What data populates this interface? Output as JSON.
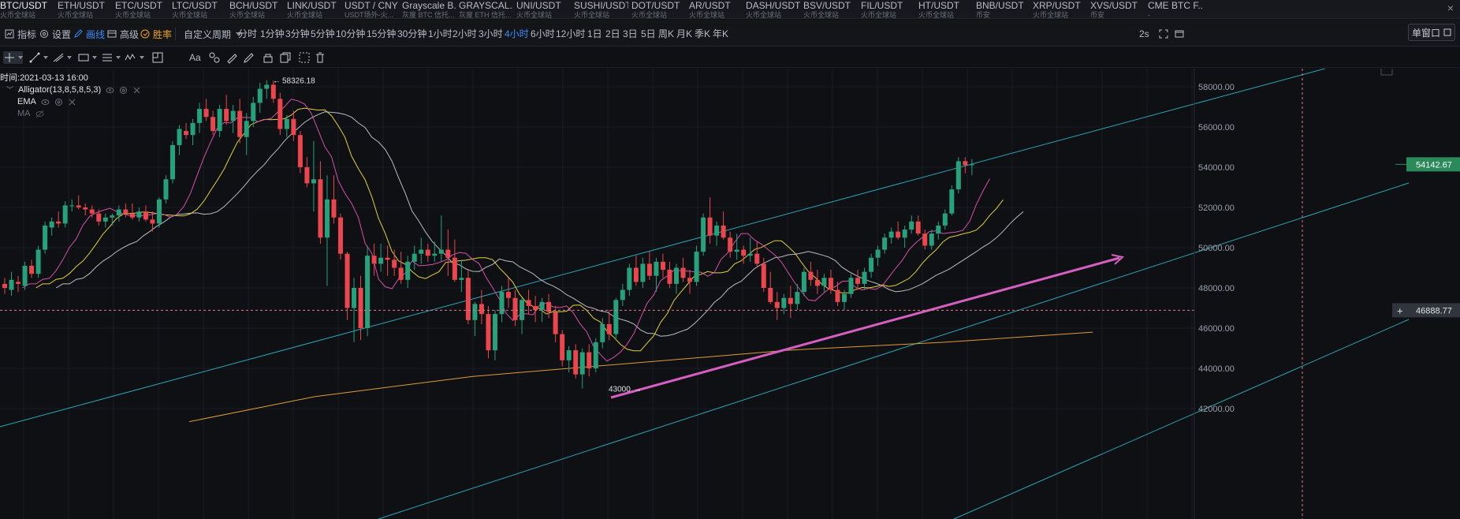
{
  "tickers": [
    {
      "symbol": "BTC/USDT",
      "exchange": "火币全球站",
      "active": true
    },
    {
      "symbol": "ETH/USDT",
      "exchange": "火币全球站"
    },
    {
      "symbol": "ETC/USDT",
      "exchange": "火币全球站"
    },
    {
      "symbol": "LTC/USDT",
      "exchange": "火币全球站"
    },
    {
      "symbol": "BCH/USDT",
      "exchange": "火币全球站"
    },
    {
      "symbol": "LINK/USDT",
      "exchange": "火币全球站"
    },
    {
      "symbol": "USDT / CNY",
      "exchange": "USDT场外-火..."
    },
    {
      "symbol": "Grayscale B...",
      "exchange": "灰度 BTC 信托..."
    },
    {
      "symbol": "GRAYSCAL...",
      "exchange": "灰度 ETH 信托..."
    },
    {
      "symbol": "UNI/USDT",
      "exchange": "火币全球站"
    },
    {
      "symbol": "SUSHI/USDT",
      "exchange": "火币全球站"
    },
    {
      "symbol": "DOT/USDT",
      "exchange": "火币全球站"
    },
    {
      "symbol": "AR/USDT",
      "exchange": "火币全球站"
    },
    {
      "symbol": "DASH/USDT",
      "exchange": "火币全球站"
    },
    {
      "symbol": "BSV/USDT",
      "exchange": "火币全球站"
    },
    {
      "symbol": "FIL/USDT",
      "exchange": "火币全球站"
    },
    {
      "symbol": "HT/USDT",
      "exchange": "火币全球站"
    },
    {
      "symbol": "BNB/USDT",
      "exchange": "币安"
    },
    {
      "symbol": "XRP/USDT",
      "exchange": "火币全球站"
    },
    {
      "symbol": "XVS/USDT",
      "exchange": "币安"
    },
    {
      "symbol": "CME BTC F...",
      "exchange": "-"
    }
  ],
  "ticker_close": "×",
  "toolbar": {
    "indicators": "指标",
    "settings": "设置",
    "drawing": "画线",
    "advanced": "高级",
    "winrate": "胜率",
    "custom_period": "自定义周期",
    "periods": [
      "分时",
      "1分钟",
      "3分钟",
      "5分钟",
      "10分钟",
      "15分钟",
      "30分钟",
      "1小时",
      "2小时",
      "3小时",
      "4小时",
      "6小时",
      "12小时",
      "1日",
      "2日",
      "3日",
      "5日",
      "周K",
      "月K",
      "季K",
      "年K"
    ],
    "active_period": "4小时",
    "refresh_interval": "2s",
    "single_window": "单窗口"
  },
  "drawing_tools": [
    "crosshair",
    "trend-line",
    "fib",
    "rectangle",
    "horizontal-lines",
    "wave",
    "ruler",
    "text",
    "pattern",
    "brush",
    "pencil",
    "lock",
    "copy",
    "screenshot",
    "delete"
  ],
  "drawing_text_tool": "Aa",
  "legend": {
    "time_label": "时间:",
    "time_value": "2021-03-13 16:00",
    "indicators": [
      {
        "name": "Alligator(13,8,5,8,5,3)",
        "visible": true
      },
      {
        "name": "EMA",
        "visible": true
      },
      {
        "name": "MA",
        "visible": false
      }
    ]
  },
  "colors": {
    "up": "#26a17b",
    "down": "#e9474d",
    "alligator_jaw": "#d450a8",
    "alligator_teeth": "#dfd040",
    "alligator_lips": "#b9bcc4",
    "ema": "#e09a3a",
    "channel": "#2aa6b6",
    "trendline": "#d45fc0",
    "price_tag": "#2a8a5a",
    "crosshair": "#e07a8a"
  },
  "chart_data": {
    "type": "candlestick",
    "interval": "4小时",
    "y_axis_labels": [
      "58000.00",
      "56000.00",
      "54000.00",
      "52000.00",
      "50000.00",
      "48000.00",
      "46000.00",
      "44000.00",
      "42000.00"
    ],
    "ylim": [
      41500,
      59300
    ],
    "last_price": "54142.67",
    "crosshair_price": "46888.77",
    "annotations": {
      "high": "58326.18",
      "low": "43000"
    },
    "candles_ohlc": [
      [
        48200,
        48500,
        47700,
        48000
      ],
      [
        47900,
        48800,
        47600,
        48400
      ],
      [
        48300,
        48600,
        47800,
        48200
      ],
      [
        48100,
        49300,
        47900,
        49100
      ],
      [
        49100,
        49400,
        48500,
        48700
      ],
      [
        48700,
        50100,
        48500,
        49900
      ],
      [
        49900,
        51300,
        49700,
        51100
      ],
      [
        51000,
        51500,
        50600,
        51300
      ],
      [
        51300,
        51800,
        51000,
        51200
      ],
      [
        51200,
        52300,
        51000,
        52100
      ],
      [
        52100,
        52400,
        51800,
        52100
      ],
      [
        52100,
        52600,
        51900,
        52000
      ],
      [
        52000,
        52200,
        51600,
        51900
      ],
      [
        51900,
        52100,
        51500,
        51700
      ],
      [
        51700,
        51900,
        51100,
        51300
      ],
      [
        51300,
        51700,
        51000,
        51500
      ],
      [
        51500,
        51700,
        51100,
        51600
      ],
      [
        51600,
        52100,
        51300,
        51900
      ],
      [
        51900,
        52200,
        51500,
        51700
      ],
      [
        51700,
        52200,
        51400,
        51500
      ],
      [
        51500,
        52000,
        51300,
        51800
      ],
      [
        51800,
        52100,
        51300,
        51400
      ],
      [
        51400,
        51800,
        50800,
        51200
      ],
      [
        51200,
        52500,
        51000,
        52400
      ],
      [
        52400,
        53600,
        52200,
        53400
      ],
      [
        53400,
        55300,
        53200,
        55100
      ],
      [
        55100,
        56100,
        54600,
        55900
      ],
      [
        55800,
        56200,
        55400,
        55600
      ],
      [
        55600,
        56400,
        55100,
        56200
      ],
      [
        56200,
        57200,
        55700,
        56900
      ],
      [
        56900,
        57400,
        56300,
        56500
      ],
      [
        56500,
        56800,
        55600,
        55800
      ],
      [
        55800,
        57100,
        55500,
        56900
      ],
      [
        56900,
        57600,
        56100,
        56300
      ],
      [
        56300,
        57100,
        55700,
        56800
      ],
      [
        56800,
        57400,
        55200,
        55500
      ],
      [
        55500,
        56700,
        54600,
        56300
      ],
      [
        56300,
        57500,
        56000,
        57200
      ],
      [
        57200,
        58200,
        56700,
        57900
      ],
      [
        57900,
        58326,
        57400,
        58100
      ],
      [
        58100,
        58300,
        57200,
        57400
      ],
      [
        57400,
        57700,
        55600,
        55900
      ],
      [
        55900,
        56600,
        55500,
        56400
      ],
      [
        56400,
        56800,
        55300,
        55600
      ],
      [
        55600,
        55800,
        53700,
        54000
      ],
      [
        54000,
        54500,
        53000,
        53200
      ],
      [
        53200,
        55300,
        51800,
        53400
      ],
      [
        53400,
        54300,
        50200,
        50500
      ],
      [
        50500,
        53600,
        48100,
        52400
      ],
      [
        52400,
        53600,
        51200,
        51500
      ],
      [
        51500,
        51700,
        49400,
        49700
      ],
      [
        49700,
        49800,
        46400,
        47000
      ],
      [
        47000,
        48500,
        45300,
        48000
      ],
      [
        48000,
        48600,
        45400,
        46000
      ],
      [
        46000,
        50100,
        45600,
        49600
      ],
      [
        49600,
        50200,
        48600,
        49200
      ],
      [
        49200,
        50200,
        48800,
        49500
      ],
      [
        49500,
        50100,
        48600,
        49400
      ],
      [
        49400,
        49900,
        48600,
        49000
      ],
      [
        49000,
        49800,
        48200,
        48400
      ],
      [
        48400,
        49600,
        48000,
        49300
      ],
      [
        49300,
        50100,
        48900,
        49700
      ],
      [
        49700,
        50500,
        49200,
        49900
      ],
      [
        49900,
        50200,
        49300,
        49600
      ],
      [
        49600,
        50300,
        49300,
        49700
      ],
      [
        49700,
        51600,
        49300,
        49900
      ],
      [
        49900,
        50900,
        48600,
        49500
      ],
      [
        49500,
        50400,
        48300,
        48400
      ],
      [
        48400,
        49400,
        47800,
        48500
      ],
      [
        48500,
        48900,
        46200,
        46400
      ],
      [
        46400,
        47300,
        45600,
        47200
      ],
      [
        47200,
        47900,
        46200,
        46700
      ],
      [
        46700,
        47100,
        44500,
        44900
      ],
      [
        44900,
        46900,
        44400,
        46700
      ],
      [
        46700,
        48100,
        46300,
        47800
      ],
      [
        47800,
        48500,
        47000,
        47500
      ],
      [
        47500,
        47900,
        46100,
        46400
      ],
      [
        46400,
        47500,
        45700,
        47400
      ],
      [
        47400,
        47900,
        46700,
        47100
      ],
      [
        47100,
        47600,
        46300,
        46900
      ],
      [
        46900,
        47500,
        46300,
        47300
      ],
      [
        47300,
        47700,
        46500,
        46800
      ],
      [
        46800,
        47100,
        45300,
        45700
      ],
      [
        45700,
        45900,
        44100,
        44400
      ],
      [
        44400,
        45100,
        43800,
        44900
      ],
      [
        44900,
        45200,
        43500,
        43700
      ],
      [
        43700,
        45000,
        43000,
        44800
      ],
      [
        44800,
        45200,
        43600,
        44000
      ],
      [
        44000,
        45500,
        43800,
        45300
      ],
      [
        45300,
        46500,
        45000,
        46200
      ],
      [
        46200,
        46900,
        45400,
        45700
      ],
      [
        45700,
        47500,
        45500,
        47400
      ],
      [
        47400,
        48200,
        47100,
        47900
      ],
      [
        47900,
        49200,
        47600,
        49000
      ],
      [
        49000,
        49600,
        48100,
        48300
      ],
      [
        48300,
        49500,
        48000,
        49200
      ],
      [
        49200,
        49800,
        48400,
        48600
      ],
      [
        48600,
        49500,
        47800,
        49300
      ],
      [
        49300,
        49700,
        48500,
        48900
      ],
      [
        48900,
        49300,
        48000,
        48200
      ],
      [
        48200,
        49200,
        47700,
        49000
      ],
      [
        49000,
        49500,
        48300,
        48500
      ],
      [
        48500,
        48900,
        47700,
        48300
      ],
      [
        48300,
        50100,
        48100,
        49800
      ],
      [
        49800,
        51700,
        49600,
        51500
      ],
      [
        51500,
        52500,
        50200,
        50600
      ],
      [
        50600,
        51300,
        50100,
        51100
      ],
      [
        51100,
        51800,
        50400,
        50500
      ],
      [
        50500,
        50800,
        49500,
        49800
      ],
      [
        49800,
        50700,
        49400,
        49900
      ],
      [
        49900,
        50100,
        49200,
        49600
      ],
      [
        49600,
        50500,
        49300,
        49700
      ],
      [
        49700,
        50300,
        49000,
        49200
      ],
      [
        49200,
        49500,
        47800,
        48000
      ],
      [
        48000,
        48800,
        47200,
        47300
      ],
      [
        47300,
        47800,
        46400,
        47000
      ],
      [
        47000,
        47700,
        46700,
        47500
      ],
      [
        47500,
        48100,
        46500,
        47200
      ],
      [
        47200,
        48200,
        46900,
        47800
      ],
      [
        47800,
        49000,
        47600,
        48800
      ],
      [
        48800,
        49300,
        48100,
        48400
      ],
      [
        48400,
        48900,
        47700,
        48100
      ],
      [
        48100,
        48700,
        47800,
        48500
      ],
      [
        48500,
        48900,
        47700,
        47900
      ],
      [
        47900,
        48300,
        47100,
        47300
      ],
      [
        47300,
        47900,
        46900,
        47700
      ],
      [
        47700,
        48700,
        47500,
        48500
      ],
      [
        48500,
        48900,
        47900,
        48200
      ],
      [
        48200,
        49000,
        47900,
        48800
      ],
      [
        48800,
        49700,
        48500,
        49500
      ],
      [
        49500,
        50100,
        49100,
        49900
      ],
      [
        49900,
        50700,
        49700,
        50500
      ],
      [
        50500,
        51000,
        50200,
        50800
      ],
      [
        50800,
        51300,
        50400,
        50500
      ],
      [
        50500,
        51100,
        50000,
        50900
      ],
      [
        50900,
        51600,
        50700,
        51300
      ],
      [
        51300,
        51600,
        50600,
        50700
      ],
      [
        50700,
        50900,
        49900,
        50100
      ],
      [
        50100,
        50900,
        49900,
        50700
      ],
      [
        50700,
        51300,
        50400,
        51100
      ],
      [
        51100,
        51900,
        50900,
        51700
      ],
      [
        51700,
        53100,
        51600,
        52900
      ],
      [
        52900,
        54500,
        52700,
        54300
      ],
      [
        54300,
        54500,
        53700,
        54100
      ],
      [
        54100,
        54400,
        53600,
        54142.67
      ]
    ]
  }
}
